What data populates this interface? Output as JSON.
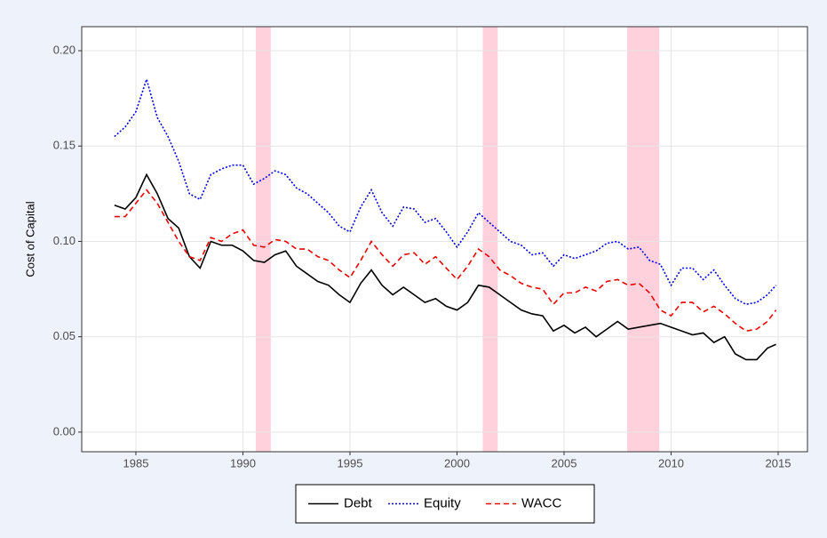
{
  "chart_data": {
    "type": "line",
    "y_label": "Cost of Capital",
    "x": [
      1984,
      1984.5,
      1985,
      1985.5,
      1986,
      1986.5,
      1987,
      1987.5,
      1988,
      1988.5,
      1989,
      1989.5,
      1990,
      1990.5,
      1991,
      1991.5,
      1992,
      1992.5,
      1993,
      1993.5,
      1994,
      1994.5,
      1995,
      1995.5,
      1996,
      1996.5,
      1997,
      1997.5,
      1998,
      1998.5,
      1999,
      1999.5,
      2000,
      2000.5,
      2001,
      2001.5,
      2002,
      2002.5,
      2003,
      2003.5,
      2004,
      2004.5,
      2005,
      2005.5,
      2006,
      2006.5,
      2007,
      2007.5,
      2008,
      2008.5,
      2009,
      2009.5,
      2010,
      2010.5,
      2011,
      2011.5,
      2012,
      2012.5,
      2013,
      2013.5,
      2014,
      2014.5,
      2014.9
    ],
    "series": [
      {
        "name": "Debt",
        "color": "#000000",
        "dash": "none",
        "values": [
          0.119,
          0.117,
          0.123,
          0.135,
          0.125,
          0.112,
          0.107,
          0.092,
          0.086,
          0.1,
          0.098,
          0.098,
          0.095,
          0.09,
          0.089,
          0.093,
          0.095,
          0.087,
          0.083,
          0.079,
          0.077,
          0.072,
          0.068,
          0.078,
          0.085,
          0.077,
          0.072,
          0.076,
          0.072,
          0.068,
          0.07,
          0.066,
          0.064,
          0.068,
          0.077,
          0.076,
          0.072,
          0.068,
          0.064,
          0.062,
          0.061,
          0.053,
          0.056,
          0.052,
          0.055,
          0.05,
          0.054,
          0.058,
          0.054,
          0.055,
          0.056,
          0.057,
          0.055,
          0.053,
          0.051,
          0.052,
          0.047,
          0.05,
          0.041,
          0.038,
          0.038,
          0.044,
          0.046
        ]
      },
      {
        "name": "Equity",
        "color": "#0000ee",
        "dash": "2,2",
        "values": [
          0.155,
          0.16,
          0.168,
          0.185,
          0.165,
          0.155,
          0.142,
          0.125,
          0.122,
          0.135,
          0.138,
          0.14,
          0.14,
          0.13,
          0.133,
          0.137,
          0.135,
          0.128,
          0.125,
          0.12,
          0.115,
          0.108,
          0.105,
          0.118,
          0.127,
          0.115,
          0.108,
          0.118,
          0.117,
          0.11,
          0.112,
          0.105,
          0.097,
          0.105,
          0.115,
          0.11,
          0.105,
          0.1,
          0.098,
          0.093,
          0.094,
          0.087,
          0.093,
          0.091,
          0.093,
          0.095,
          0.099,
          0.1,
          0.096,
          0.097,
          0.09,
          0.088,
          0.077,
          0.086,
          0.086,
          0.08,
          0.085,
          0.077,
          0.07,
          0.067,
          0.068,
          0.072,
          0.077
        ]
      },
      {
        "name": "WACC",
        "color": "#ee0000",
        "dash": "6,4",
        "values": [
          0.113,
          0.113,
          0.12,
          0.127,
          0.12,
          0.11,
          0.1,
          0.092,
          0.09,
          0.102,
          0.1,
          0.104,
          0.106,
          0.098,
          0.097,
          0.101,
          0.1,
          0.096,
          0.096,
          0.092,
          0.09,
          0.085,
          0.081,
          0.09,
          0.1,
          0.093,
          0.087,
          0.093,
          0.094,
          0.088,
          0.092,
          0.086,
          0.08,
          0.087,
          0.096,
          0.092,
          0.085,
          0.082,
          0.078,
          0.076,
          0.075,
          0.067,
          0.073,
          0.073,
          0.076,
          0.074,
          0.079,
          0.08,
          0.077,
          0.078,
          0.073,
          0.064,
          0.061,
          0.068,
          0.068,
          0.063,
          0.066,
          0.062,
          0.057,
          0.053,
          0.054,
          0.058,
          0.064
        ]
      }
    ],
    "shaded_regions": [
      [
        1990.6,
        1991.3
      ],
      [
        2001.2,
        2001.9
      ],
      [
        2007.95,
        2009.45
      ]
    ],
    "shade_color": "#ffd1dc",
    "xlim": [
      1982.47,
      2016.37
    ],
    "xticks": [
      1985,
      1990,
      1995,
      2000,
      2005,
      2010,
      2015
    ],
    "ylim": [
      -0.0103,
      0.2126
    ],
    "yticks": [
      {
        "value": 0,
        "label": "0.00"
      },
      {
        "value": 0.05,
        "label": "0.05"
      },
      {
        "value": 0.1,
        "label": "0.10"
      },
      {
        "value": 0.15,
        "label": "0.15"
      },
      {
        "value": 0.2,
        "label": "0.20"
      }
    ],
    "grid": true,
    "legend": "bottom"
  }
}
